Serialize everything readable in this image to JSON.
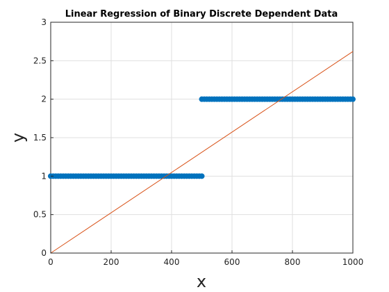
{
  "chart_data": {
    "type": "scatter",
    "title": "Linear Regression of Binary Discrete Dependent Data",
    "xlabel": "x",
    "ylabel": "y",
    "xlim": [
      0,
      1000
    ],
    "ylim": [
      0,
      3
    ],
    "xticks": [
      0,
      200,
      400,
      600,
      800,
      1000
    ],
    "yticks": [
      0,
      0.5,
      1,
      1.5,
      2,
      2.5,
      3
    ],
    "xtick_labels": [
      "0",
      "200",
      "400",
      "600",
      "800",
      "1000"
    ],
    "ytick_labels": [
      "0",
      "0.5",
      "1",
      "1.5",
      "2",
      "2.5",
      "3"
    ],
    "grid": true,
    "series": [
      {
        "type": "scatter",
        "color": "#0072BD",
        "segments": [
          {
            "x_start": 0,
            "x_end": 500,
            "y": 1
          },
          {
            "x_start": 500,
            "x_end": 1000,
            "y": 2
          }
        ]
      },
      {
        "type": "line",
        "color": "#D95319",
        "x": [
          0,
          1000
        ],
        "y": [
          0,
          2.62
        ]
      }
    ]
  }
}
